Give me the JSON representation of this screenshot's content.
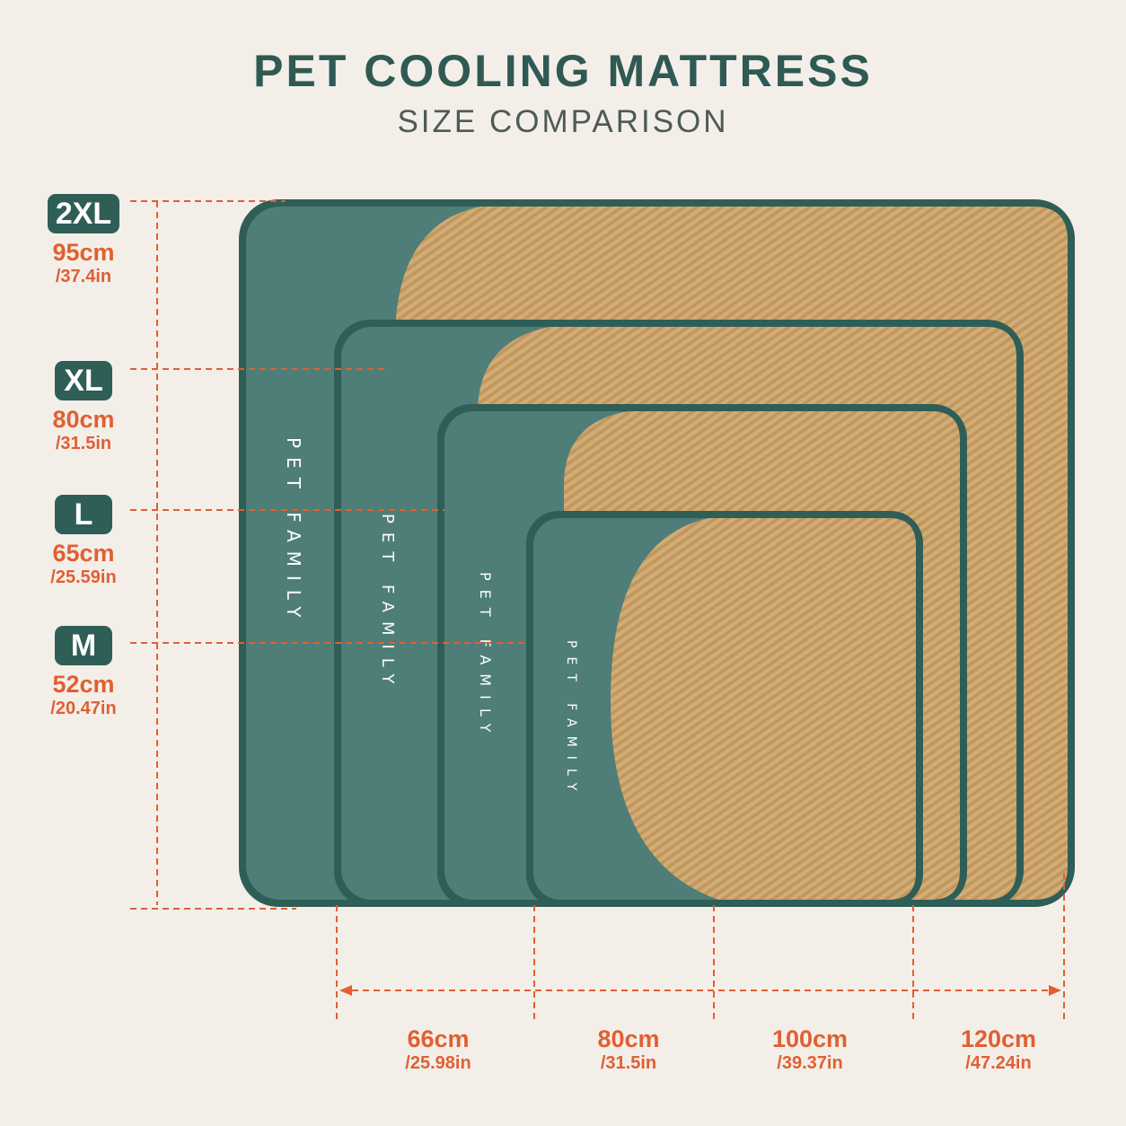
{
  "title": "PET COOLING MATTRESS",
  "subtitle": "SIZE COMPARISON",
  "brand_text": "PET FAMILY",
  "colors": {
    "background": "#f3efe8",
    "mat_fabric": "#4e7e77",
    "mat_border": "#2f5e57",
    "straw": "#cba36b",
    "dimension_line": "#e15f32",
    "title": "#2f5a53"
  },
  "sizes": [
    {
      "name": "2XL",
      "length_cm": "95cm",
      "length_in": "/37.4in"
    },
    {
      "name": "XL",
      "length_cm": "80cm",
      "length_in": "/31.5in"
    },
    {
      "name": "L",
      "length_cm": "65cm",
      "length_in": "/25.59in"
    },
    {
      "name": "M",
      "length_cm": "52cm",
      "length_in": "/20.47in"
    }
  ],
  "widths": [
    {
      "cm": "66cm",
      "in": "/25.98in"
    },
    {
      "cm": "80cm",
      "in": "/31.5in"
    },
    {
      "cm": "100cm",
      "in": "/39.37in"
    },
    {
      "cm": "120cm",
      "in": "/47.24in"
    }
  ]
}
